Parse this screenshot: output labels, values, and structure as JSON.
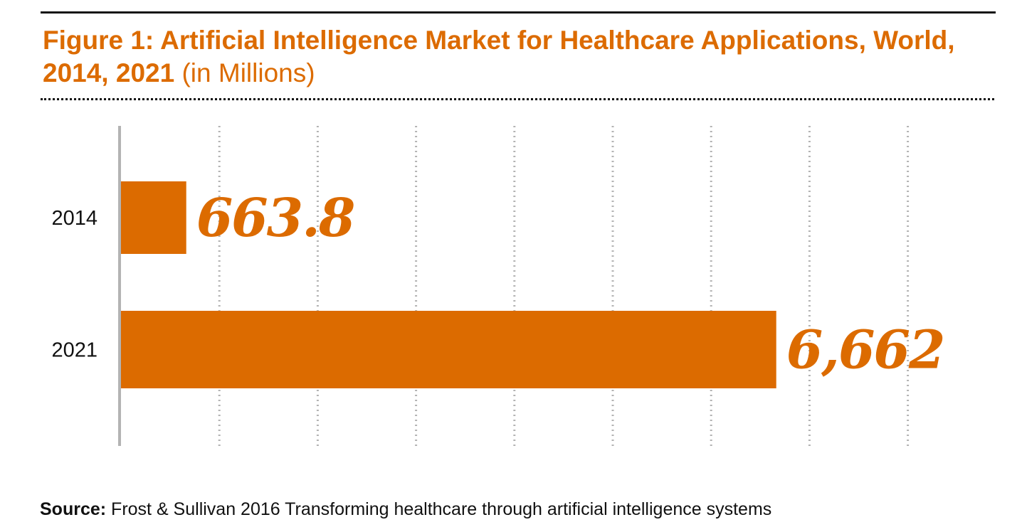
{
  "header": {
    "title_bold": "Figure 1: Artificial Intelligence Market for Healthcare Applications, World, 2014, 2021",
    "title_unit": "(in Millions)"
  },
  "footer": {
    "source_key": "Source:",
    "source_text": "Frost & Sullivan 2016 Transforming healthcare through artificial intelligence systems"
  },
  "colors": {
    "accent": "#dc6b00",
    "axis": "#b3b3b3",
    "text": "#111111"
  },
  "chart_data": {
    "type": "bar",
    "orientation": "horizontal",
    "categories": [
      "2014",
      "2021"
    ],
    "values": [
      663.8,
      6662
    ],
    "value_labels": [
      "663.8",
      "6,662"
    ],
    "xlim": [
      0,
      8000
    ],
    "grid": true,
    "legend": "none"
  }
}
